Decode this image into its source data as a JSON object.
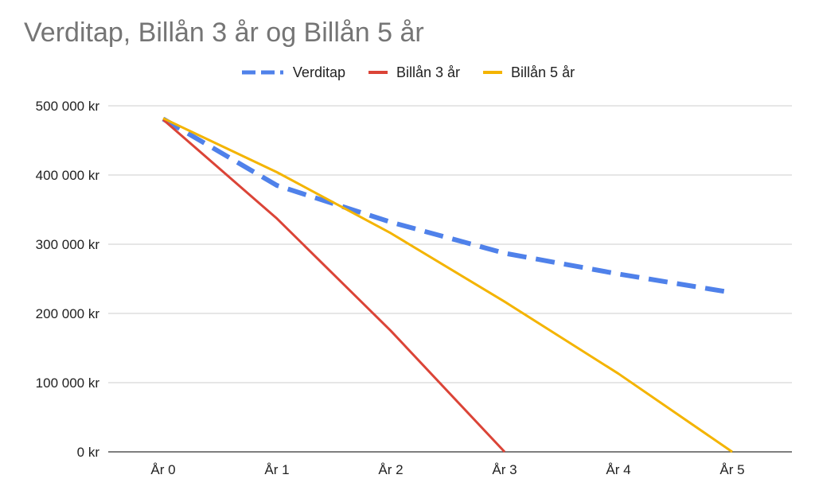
{
  "chart_data": {
    "type": "line",
    "title": "Verditap, Billån 3 år og Billån 5 år",
    "xlabel": "",
    "ylabel": "",
    "categories": [
      "År 0",
      "År 1",
      "År 2",
      "År 3",
      "År 4",
      "År 5"
    ],
    "y_ticks": [
      "0 kr",
      "100 000 kr",
      "200 000 kr",
      "300 000 kr",
      "400 000 kr",
      "500 000 kr"
    ],
    "ylim": [
      0,
      500000
    ],
    "grid": true,
    "legend_position": "top-center",
    "series": [
      {
        "name": "Verditap",
        "color": "#4f81ea",
        "style": "dashed",
        "values": [
          481000,
          385000,
          332000,
          287000,
          257000,
          230000
        ]
      },
      {
        "name": "Billån 3 år",
        "color": "#db4437",
        "style": "solid",
        "values": [
          480000,
          337000,
          175000,
          0,
          null,
          null
        ]
      },
      {
        "name": "Billån 5 år",
        "color": "#f4b400",
        "style": "solid",
        "values": [
          482000,
          404000,
          316000,
          217000,
          113000,
          0
        ]
      }
    ]
  }
}
